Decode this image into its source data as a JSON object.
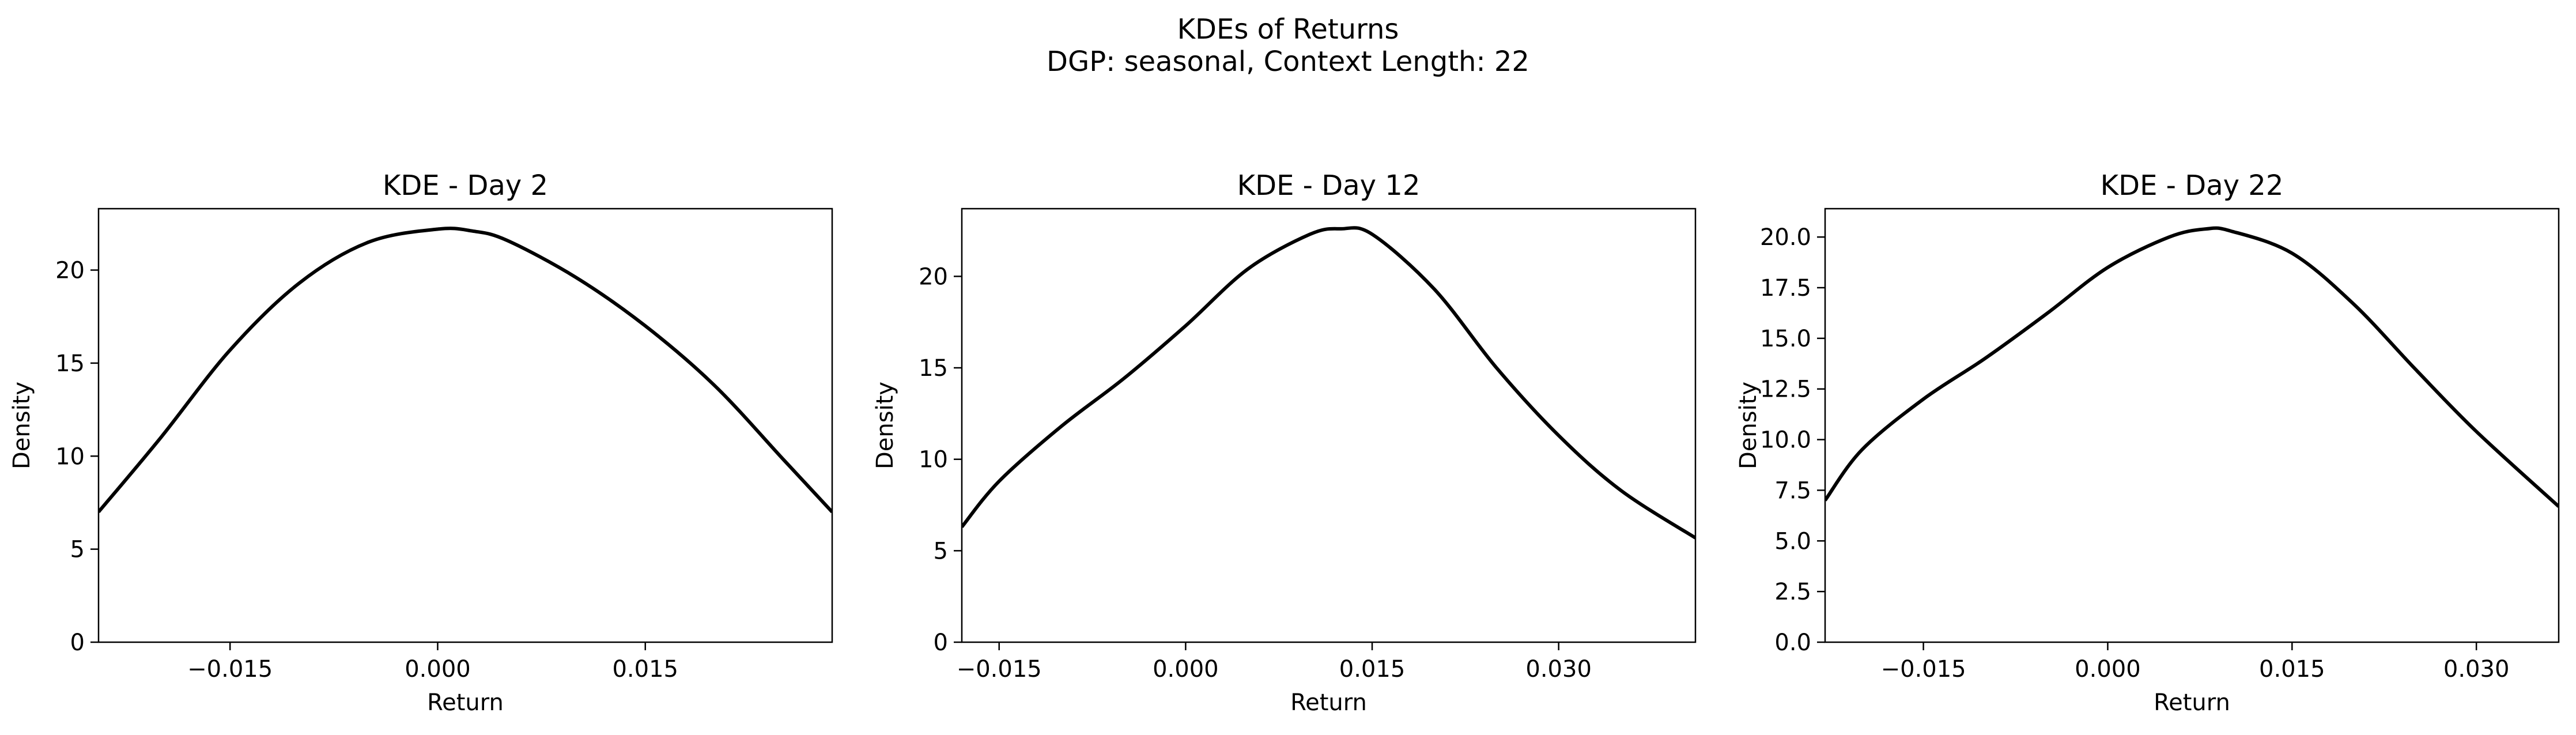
{
  "figure": {
    "suptitle_line1": "KDEs of Returns",
    "suptitle_line2": "DGP: seasonal, Context Length: 22"
  },
  "chart_data": [
    {
      "type": "line",
      "title": "KDE - Day 2",
      "xlabel": "Return",
      "ylabel": "Density",
      "xlim": [
        -0.0245,
        0.0285
      ],
      "ylim": [
        0,
        23.3
      ],
      "xticks": [
        -0.015,
        0.0,
        0.015
      ],
      "xtick_labels": [
        "−0.015",
        "0.000",
        "0.015"
      ],
      "yticks": [
        0,
        5,
        10,
        15,
        20
      ],
      "ytick_labels": [
        "0",
        "5",
        "10",
        "15",
        "20"
      ],
      "line_color": "#000000",
      "grid": false,
      "x": [
        -0.0245,
        -0.02,
        -0.015,
        -0.01,
        -0.005,
        0.0,
        0.0025,
        0.005,
        0.01,
        0.015,
        0.02,
        0.025,
        0.0285
      ],
      "y": [
        7.0,
        11.0,
        15.7,
        19.3,
        21.5,
        22.2,
        22.1,
        21.6,
        19.6,
        17.0,
        13.8,
        9.8,
        7.0
      ]
    },
    {
      "type": "line",
      "title": "KDE - Day 12",
      "xlabel": "Return",
      "ylabel": "Density",
      "xlim": [
        -0.018,
        0.041
      ],
      "ylim": [
        0,
        23.7
      ],
      "xticks": [
        -0.015,
        0.0,
        0.015,
        0.03
      ],
      "xtick_labels": [
        "−0.015",
        "0.000",
        "0.015",
        "0.030"
      ],
      "yticks": [
        0,
        5,
        10,
        15,
        20
      ],
      "ytick_labels": [
        "0",
        "5",
        "10",
        "15",
        "20"
      ],
      "line_color": "#000000",
      "grid": false,
      "x": [
        -0.018,
        -0.015,
        -0.01,
        -0.005,
        0.0,
        0.005,
        0.01,
        0.0125,
        0.015,
        0.02,
        0.025,
        0.03,
        0.035,
        0.041
      ],
      "y": [
        6.3,
        8.8,
        11.8,
        14.4,
        17.3,
        20.4,
        22.3,
        22.6,
        22.3,
        19.3,
        15.0,
        11.3,
        8.3,
        5.7
      ]
    },
    {
      "type": "line",
      "title": "KDE - Day 22",
      "xlabel": "Return",
      "ylabel": "Density",
      "xlim": [
        -0.023,
        0.0367
      ],
      "ylim": [
        0,
        21.4
      ],
      "xticks": [
        -0.015,
        0.0,
        0.015,
        0.03
      ],
      "xtick_labels": [
        "−0.015",
        "0.000",
        "0.015",
        "0.030"
      ],
      "yticks": [
        0.0,
        2.5,
        5.0,
        7.5,
        10.0,
        12.5,
        15.0,
        17.5,
        20.0
      ],
      "ytick_labels": [
        "0.0",
        "2.5",
        "5.0",
        "7.5",
        "10.0",
        "12.5",
        "15.0",
        "17.5",
        "20.0"
      ],
      "line_color": "#000000",
      "grid": false,
      "x": [
        -0.023,
        -0.02,
        -0.015,
        -0.01,
        -0.005,
        0.0,
        0.005,
        0.008,
        0.01,
        0.015,
        0.02,
        0.025,
        0.03,
        0.0367
      ],
      "y": [
        7.0,
        9.5,
        12.0,
        14.0,
        16.2,
        18.5,
        20.0,
        20.4,
        20.3,
        19.2,
        16.7,
        13.5,
        10.4,
        6.7
      ]
    }
  ]
}
